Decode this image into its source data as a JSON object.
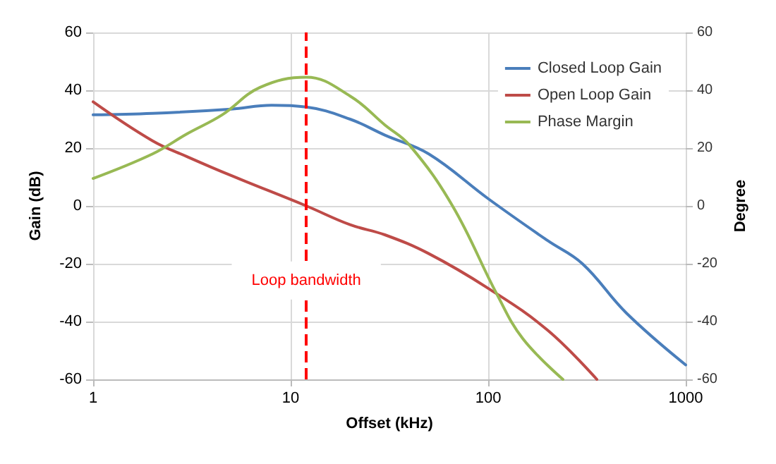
{
  "chart_data": {
    "type": "line",
    "xlabel": "Offset (kHz)",
    "ylabel": "Gain (dB)",
    "y2label": "Degree",
    "log": "x",
    "xlim": [
      1,
      1000
    ],
    "xticks": [
      1,
      10,
      100,
      1000
    ],
    "ylim": [
      -60,
      60
    ],
    "yticks": [
      -60,
      -40,
      -20,
      0,
      20,
      40,
      60
    ],
    "y2lim": [
      -60,
      60
    ],
    "y2ticks": [
      -60,
      -40,
      -20,
      0,
      20,
      40,
      60
    ],
    "grid": true,
    "legend": "top right",
    "marker": "none",
    "line_style": "solid",
    "series": [
      {
        "name": "Closed Loop Gain",
        "color": "#4a7ebb",
        "x": [
          1,
          2,
          5,
          8,
          12,
          20,
          30,
          50,
          100,
          200,
          300,
          500,
          1000
        ],
        "values": [
          31.5,
          32,
          33.5,
          34.8,
          34.2,
          30,
          24.5,
          18,
          2.5,
          -12,
          -20,
          -37,
          -55
        ]
      },
      {
        "name": "Open Loop Gain",
        "color": "#be4b48",
        "x": [
          1,
          2,
          3,
          5,
          12,
          20,
          30,
          50,
          100,
          200,
          355
        ],
        "values": [
          36,
          22.5,
          17,
          10.5,
          0,
          -6.5,
          -10,
          -16.5,
          -28.5,
          -43,
          -60
        ]
      },
      {
        "name": "Phase Margin",
        "color": "#98b954",
        "axis": "y2",
        "x": [
          1,
          2,
          3,
          4.5,
          7,
          12,
          20,
          30,
          40,
          66,
          111,
          150,
          239
        ],
        "values": [
          9.5,
          18,
          25,
          31.5,
          41,
          44.5,
          38,
          28,
          21,
          0,
          -30.7,
          -46,
          -60
        ]
      }
    ],
    "ref_lines": [
      {
        "axis": "x",
        "value": 12,
        "label": "Loop bandwidth",
        "color": "#ff0000",
        "line_style": "dashed"
      }
    ]
  }
}
